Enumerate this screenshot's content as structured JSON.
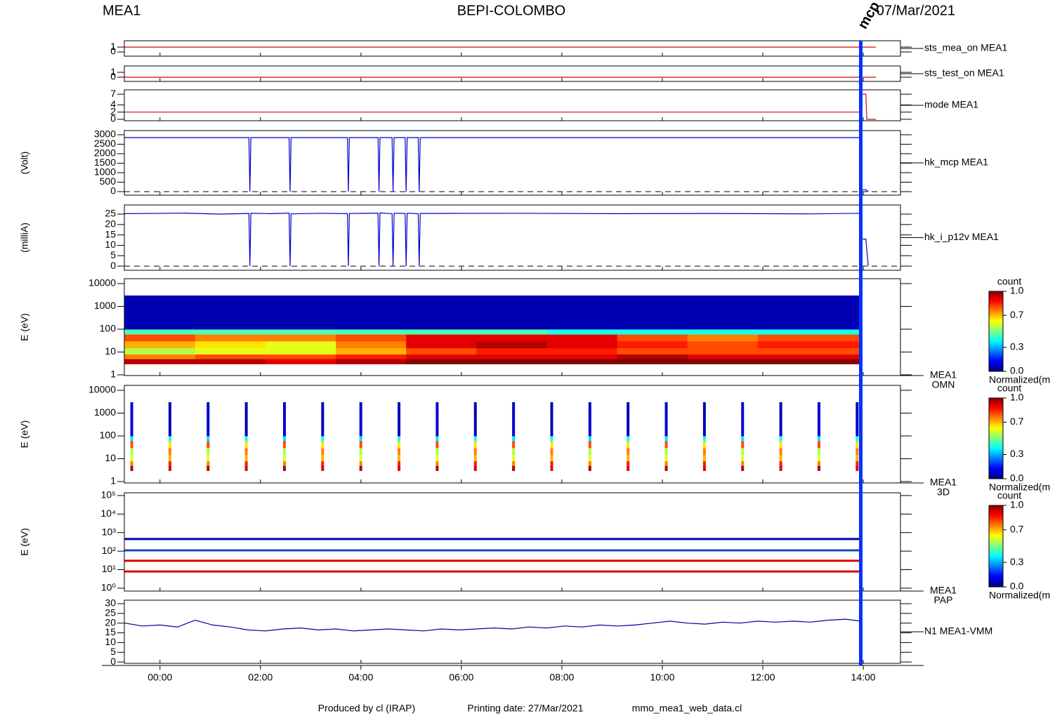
{
  "header": {
    "left": "MEA1",
    "center": "BEPI-COLOMBO",
    "right": "07/Mar/2021"
  },
  "footer": {
    "producer": "Produced by cl (IRAP)",
    "date": "Printing date: 27/Mar/2021",
    "file": "mmo_mea1_web_data.cl"
  },
  "x_axis": {
    "xlim": [
      -0.71,
      14.74
    ],
    "xticks": [
      {
        "value": 0,
        "label": "00:00"
      },
      {
        "value": 2,
        "label": "02:00"
      },
      {
        "value": 4,
        "label": "04:00"
      },
      {
        "value": 6,
        "label": "06:00"
      },
      {
        "value": 8,
        "label": "08:00"
      },
      {
        "value": 10,
        "label": "10:00"
      },
      {
        "value": 12,
        "label": "12:00"
      },
      {
        "value": 14,
        "label": "14:00"
      }
    ]
  },
  "cursor": {
    "x": 13.95,
    "label": "mcp on",
    "color": "#0033ff"
  },
  "chart_data": [
    {
      "type": "line",
      "label": "sts_mea_on MEA1",
      "ylim": [
        -0.86,
        2.3
      ],
      "yticks": [
        0,
        1
      ],
      "series": [
        {
          "color": "#e00000",
          "x": [
            -0.71,
            14.25
          ],
          "values": [
            1,
            1
          ]
        }
      ]
    },
    {
      "type": "line",
      "label": "sts_test_on MEA1",
      "ylim": [
        -0.86,
        2.3
      ],
      "yticks": [
        0,
        1
      ],
      "series": [
        {
          "color": "#e00000",
          "x": [
            -0.71,
            14.25
          ],
          "values": [
            0,
            0
          ]
        }
      ]
    },
    {
      "type": "line",
      "label": "mode MEA1",
      "ylim": [
        -0.4,
        8.2
      ],
      "yticks": [
        0,
        2,
        4,
        7
      ],
      "series": [
        {
          "color": "#e00000",
          "x": [
            -0.71,
            13.95,
            13.97,
            14.05,
            14.07,
            14.25
          ],
          "values": [
            2,
            2,
            7,
            7,
            0,
            0
          ]
        }
      ]
    },
    {
      "type": "line",
      "label": "hk_mcp MEA1",
      "ylabel": "(Volt)",
      "ylim": [
        -185,
        3220
      ],
      "yticks": [
        0,
        500,
        1000,
        1500,
        2000,
        2500,
        3000
      ],
      "hline": 0,
      "series": [
        {
          "color": "#0000cc",
          "x": [
            -0.71,
            1.77,
            1.79,
            1.81,
            2.57,
            2.59,
            2.61,
            3.73,
            3.75,
            3.77,
            4.34,
            4.36,
            4.38,
            4.62,
            4.64,
            4.66,
            4.88,
            4.9,
            4.92,
            5.14,
            5.16,
            5.18,
            13.95,
            13.97,
            14.05,
            14.1
          ],
          "values": [
            2850,
            2850,
            0,
            2850,
            2850,
            0,
            2850,
            2850,
            0,
            2850,
            2850,
            0,
            2850,
            2850,
            0,
            2850,
            2850,
            0,
            2850,
            2850,
            0,
            2850,
            2850,
            100,
            100,
            0
          ]
        }
      ]
    },
    {
      "type": "line",
      "label": "hk_i_p12v MEA1",
      "ylabel": "(milliA)",
      "ylim": [
        -2,
        29.4
      ],
      "yticks": [
        0,
        5,
        10,
        15,
        20,
        25
      ],
      "hline": 0,
      "series": [
        {
          "color": "#0000cc",
          "x": [
            -0.71,
            0.5,
            1.2,
            1.77,
            1.79,
            1.81,
            2.2,
            2.57,
            2.59,
            2.61,
            3.2,
            3.73,
            3.75,
            3.77,
            4.34,
            4.36,
            4.38,
            4.62,
            4.64,
            4.66,
            4.88,
            4.9,
            4.92,
            5.14,
            5.16,
            5.18,
            7,
            9,
            11,
            13,
            13.95,
            13.97,
            14.05,
            14.1
          ],
          "values": [
            25.2,
            25.5,
            25,
            25.3,
            0,
            25.4,
            25.2,
            25.5,
            0,
            25.1,
            25.4,
            25.2,
            0,
            25.3,
            25.5,
            0,
            25.6,
            25.2,
            0,
            25.4,
            25.3,
            0,
            25.5,
            25.2,
            0,
            25.3,
            25.4,
            25.2,
            25.3,
            25.1,
            25.4,
            13,
            13,
            0
          ]
        }
      ]
    },
    {
      "type": "heatmap",
      "label": "MEA1",
      "sublabel": "OMN",
      "ylabel": "E (eV)",
      "log": true,
      "ylim": [
        0.93,
        16400
      ],
      "yticks": [
        1,
        10,
        100,
        1000,
        10000
      ],
      "xbins": [
        -0.71,
        0.7,
        2.1,
        3.5,
        4.9,
        6.3,
        7.7,
        9.1,
        10.5,
        11.9,
        13.95
      ],
      "ybins": [
        3,
        5,
        8,
        15,
        30,
        60,
        100,
        3000
      ],
      "values": [
        [
          0.95,
          0.95,
          0.9,
          0.95,
          1,
          1,
          1,
          1,
          1,
          1
        ],
        [
          0.75,
          0.8,
          0.8,
          0.85,
          0.9,
          0.9,
          0.9,
          0.95,
          0.9,
          0.9
        ],
        [
          0.55,
          0.6,
          0.6,
          0.7,
          0.8,
          0.85,
          0.85,
          0.8,
          0.8,
          0.8
        ],
        [
          0.7,
          0.65,
          0.6,
          0.75,
          0.9,
          0.95,
          0.9,
          0.85,
          0.8,
          0.85
        ],
        [
          0.8,
          0.75,
          0.75,
          0.8,
          0.9,
          0.9,
          0.9,
          0.8,
          0.75,
          0.8
        ],
        [
          0.45,
          0.45,
          0.45,
          0.45,
          0.45,
          0.45,
          0.4,
          0.4,
          0.4,
          0.4
        ],
        [
          0.05,
          0.05,
          0.05,
          0.05,
          0.05,
          0.05,
          0.05,
          0.05,
          0.05,
          0.05
        ]
      ],
      "colorbar": {
        "title": "count",
        "label": "Normalized(m",
        "clim": [
          0,
          1
        ],
        "ticks": [
          {
            "value": 0,
            "label": "0.0"
          },
          0.3,
          0.7,
          {
            "value": 1,
            "label": "1.0"
          }
        ]
      }
    },
    {
      "type": "heatmap",
      "label": "MEA1",
      "sublabel": "3D",
      "ylabel": "E (eV)",
      "log": true,
      "ylim": [
        0.87,
        16400
      ],
      "yticks": [
        1,
        10,
        100,
        1000,
        10000
      ],
      "xbins": [
        -0.59,
        -0.54,
        0.17,
        0.22,
        0.93,
        0.98,
        1.69,
        1.74,
        2.45,
        2.5,
        3.21,
        3.26,
        3.97,
        4.02,
        4.73,
        4.78,
        5.49,
        5.54,
        6.25,
        6.3,
        7.01,
        7.06,
        7.77,
        7.82,
        8.53,
        8.58,
        9.29,
        9.34,
        10.05,
        10.1,
        10.81,
        10.86,
        11.57,
        11.62,
        12.33,
        12.38,
        13.09,
        13.14,
        13.85,
        13.9
      ],
      "ybins": [
        3,
        5,
        8,
        15,
        30,
        60,
        100,
        3000
      ],
      "values": [
        [
          0.95,
          null,
          0.9,
          null,
          0.95,
          null,
          0.9,
          null,
          0.95,
          null,
          0.9,
          null,
          0.95,
          null,
          0.9,
          null,
          0.95,
          null,
          0.9,
          null,
          0.95,
          null,
          0.9,
          null,
          0.95,
          null,
          0.9,
          null,
          0.95,
          null,
          0.9,
          null,
          0.95,
          null,
          0.9,
          null,
          0.95,
          null,
          0.9
        ],
        [
          0.75,
          null,
          0.85,
          null,
          0.75,
          null,
          0.85,
          null,
          0.75,
          null,
          0.85,
          null,
          0.75,
          null,
          0.85,
          null,
          0.75,
          null,
          0.85,
          null,
          0.75,
          null,
          0.85,
          null,
          0.75,
          null,
          0.85,
          null,
          0.75,
          null,
          0.85,
          null,
          0.75,
          null,
          0.85,
          null,
          0.75,
          null,
          0.85
        ],
        [
          0.6,
          null,
          0.7,
          null,
          0.6,
          null,
          0.7,
          null,
          0.6,
          null,
          0.7,
          null,
          0.6,
          null,
          0.7,
          null,
          0.6,
          null,
          0.7,
          null,
          0.6,
          null,
          0.7,
          null,
          0.6,
          null,
          0.7,
          null,
          0.6,
          null,
          0.7,
          null,
          0.6,
          null,
          0.7,
          null,
          0.6,
          null,
          0.7
        ],
        [
          0.55,
          null,
          0.75,
          null,
          0.55,
          null,
          0.75,
          null,
          0.55,
          null,
          0.75,
          null,
          0.55,
          null,
          0.75,
          null,
          0.55,
          null,
          0.75,
          null,
          0.55,
          null,
          0.75,
          null,
          0.55,
          null,
          0.75,
          null,
          0.55,
          null,
          0.75,
          null,
          0.55,
          null,
          0.75,
          null,
          0.55,
          null,
          0.75
        ],
        [
          0.8,
          null,
          0.65,
          null,
          0.8,
          null,
          0.65,
          null,
          0.8,
          null,
          0.65,
          null,
          0.8,
          null,
          0.65,
          null,
          0.8,
          null,
          0.65,
          null,
          0.8,
          null,
          0.65,
          null,
          0.8,
          null,
          0.65,
          null,
          0.8,
          null,
          0.65,
          null,
          0.8,
          null,
          0.65,
          null,
          0.8,
          null,
          0.65
        ],
        [
          0.35,
          null,
          0.4,
          null,
          0.35,
          null,
          0.4,
          null,
          0.35,
          null,
          0.4,
          null,
          0.35,
          null,
          0.4,
          null,
          0.35,
          null,
          0.4,
          null,
          0.35,
          null,
          0.4,
          null,
          0.35,
          null,
          0.4,
          null,
          0.35,
          null,
          0.4,
          null,
          0.35,
          null,
          0.4,
          null,
          0.35,
          null,
          0.4
        ],
        [
          0.08,
          null,
          0.05,
          null,
          0.08,
          null,
          0.05,
          null,
          0.08,
          null,
          0.05,
          null,
          0.08,
          null,
          0.05,
          null,
          0.08,
          null,
          0.05,
          null,
          0.08,
          null,
          0.05,
          null,
          0.08,
          null,
          0.05,
          null,
          0.08,
          null,
          0.05,
          null,
          0.08,
          null,
          0.05,
          null,
          0.08,
          null,
          0.05
        ]
      ],
      "colorbar": {
        "title": "count",
        "label": "Normalized(m",
        "clim": [
          0,
          1
        ],
        "ticks": [
          {
            "value": 0,
            "label": "0.0"
          },
          0.3,
          0.7,
          {
            "value": 1,
            "label": "1.0"
          }
        ]
      }
    },
    {
      "type": "line",
      "label": "MEA1",
      "sublabel": "PAP",
      "ylabel": "E (eV)",
      "log": true,
      "ylim": [
        0.7,
        141000
      ],
      "yticks": [
        {
          "value": 1,
          "label": "10⁰"
        },
        {
          "value": 10,
          "label": "10¹"
        },
        {
          "value": 100,
          "label": "10²"
        },
        {
          "value": 1000,
          "label": "10³"
        },
        {
          "value": 10000,
          "label": "10⁴"
        },
        {
          "value": 100000,
          "label": "10⁵"
        }
      ],
      "series": [
        {
          "color": "#0000aa",
          "x": [
            -0.71,
            13.95
          ],
          "values": [
            450,
            450
          ]
        },
        {
          "color": "#1050c0",
          "x": [
            -0.71,
            13.95
          ],
          "values": [
            110,
            110
          ]
        },
        {
          "color": "#e00000",
          "x": [
            -0.71,
            13.95
          ],
          "values": [
            30,
            30
          ]
        },
        {
          "color": "#e00000",
          "x": [
            -0.71,
            13.95
          ],
          "values": [
            8,
            8
          ]
        }
      ],
      "colorbar": {
        "title": "count",
        "label": "Normalized(m",
        "clim": [
          0,
          1
        ],
        "ticks": [
          {
            "value": 0,
            "label": "0.0"
          },
          0.3,
          0.7,
          {
            "value": 1,
            "label": "1.0"
          }
        ]
      }
    },
    {
      "type": "line",
      "label": "N1 MEA1-VMM",
      "ylim": [
        -0.7,
        31.8
      ],
      "yticks": [
        0,
        5,
        10,
        15,
        20,
        25,
        30
      ],
      "series": [
        {
          "color": "#000099",
          "x": [
            -0.7,
            -0.35,
            0,
            0.35,
            0.7,
            1.05,
            1.4,
            1.75,
            2.1,
            2.45,
            2.8,
            3.15,
            3.5,
            3.85,
            4.2,
            4.55,
            4.9,
            5.25,
            5.6,
            5.95,
            6.3,
            6.65,
            7,
            7.35,
            7.7,
            8.05,
            8.4,
            8.75,
            9.1,
            9.45,
            9.8,
            10.15,
            10.5,
            10.85,
            11.2,
            11.55,
            11.9,
            12.25,
            12.6,
            12.95,
            13.3,
            13.65,
            13.95
          ],
          "values": [
            20,
            18.5,
            19,
            18,
            21.5,
            19,
            18,
            16.5,
            16,
            17,
            17.5,
            16.5,
            17,
            16,
            16.5,
            17,
            16.5,
            16,
            17,
            16.5,
            17,
            17.5,
            17,
            18,
            17.5,
            18.5,
            18,
            19,
            18.5,
            19,
            20,
            21,
            20,
            19.5,
            20.5,
            20,
            21,
            20.5,
            21,
            20.5,
            21.5,
            22,
            21
          ]
        }
      ]
    }
  ]
}
